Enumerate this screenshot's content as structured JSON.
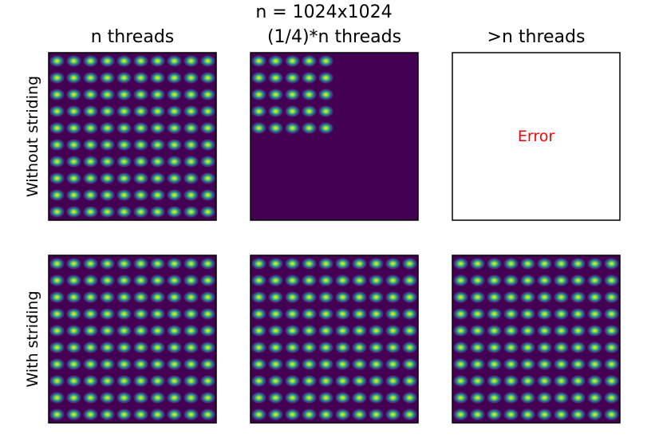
{
  "chart_data": {
    "type": "heatmap",
    "suptitle": "n = 1024x1024",
    "columns": [
      "n threads",
      "(1/4)*n threads",
      ">n threads"
    ],
    "rows": [
      "Without striding",
      "With striding"
    ],
    "pattern": {
      "periods_per_axis": 10,
      "colormap": "viridis",
      "value_range": [
        0,
        1
      ]
    },
    "panels": [
      {
        "row": 0,
        "col": 0,
        "kind": "pattern",
        "fill_fraction": 1
      },
      {
        "row": 0,
        "col": 1,
        "kind": "pattern",
        "fill_fraction": 0.5
      },
      {
        "row": 0,
        "col": 2,
        "kind": "error",
        "text": "Error"
      },
      {
        "row": 1,
        "col": 0,
        "kind": "pattern",
        "fill_fraction": 1
      },
      {
        "row": 1,
        "col": 1,
        "kind": "pattern",
        "fill_fraction": 1
      },
      {
        "row": 1,
        "col": 2,
        "kind": "pattern",
        "fill_fraction": 1
      }
    ],
    "colors": {
      "background": "#440154",
      "error_text": "#ff0000"
    }
  }
}
